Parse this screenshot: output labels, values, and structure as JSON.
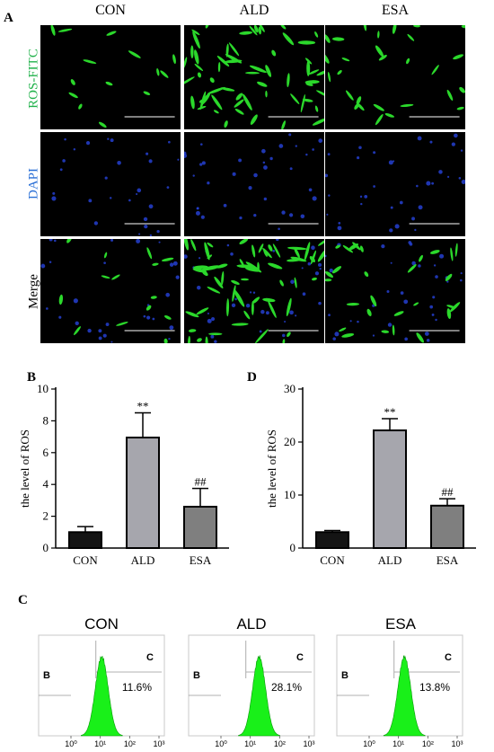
{
  "panels": {
    "a": "A",
    "b": "B",
    "c": "C",
    "d": "D"
  },
  "microscopy": {
    "columns": [
      "CON",
      "ALD",
      "ESA"
    ],
    "rows": [
      {
        "label": "ROS-FITC",
        "color": "#21b24b"
      },
      {
        "label": "DAPI",
        "color": "#2a6fd6"
      },
      {
        "label": "Merge",
        "color": "#000000"
      }
    ]
  },
  "chart_data": [
    {
      "type": "bar",
      "panel": "B",
      "categories": [
        "CON",
        "ALD",
        "ESA"
      ],
      "values": [
        1.0,
        6.95,
        2.6
      ],
      "errors": [
        0.35,
        1.55,
        1.15
      ],
      "annotations": [
        "",
        "**",
        "##"
      ],
      "bar_colors": [
        "#141414",
        "#a6a6ad",
        "#7f7f7f"
      ],
      "ylabel": "the level of ROS",
      "ylim": [
        0,
        10
      ],
      "yticks": [
        0,
        2,
        4,
        6,
        8,
        10
      ]
    },
    {
      "type": "bar",
      "panel": "D",
      "categories": [
        "CON",
        "ALD",
        "ESA"
      ],
      "values": [
        3.0,
        22.2,
        8.0
      ],
      "errors": [
        0.3,
        2.2,
        1.3
      ],
      "annotations": [
        "",
        "**",
        "##"
      ],
      "bar_colors": [
        "#141414",
        "#a6a6ad",
        "#7f7f7f"
      ],
      "ylabel": "the level of ROS",
      "ylim": [
        0,
        30
      ],
      "yticks": [
        0,
        10,
        20,
        30
      ]
    },
    {
      "type": "area",
      "panel": "C",
      "histograms": [
        {
          "title": "CON",
          "gate_left": "B",
          "gate_right": "C",
          "percent": "11.6%",
          "peak_log": 1.05
        },
        {
          "title": "ALD",
          "gate_left": "B",
          "gate_right": "C",
          "percent": "28.1%",
          "peak_log": 1.3
        },
        {
          "title": "ESA",
          "gate_left": "B",
          "gate_right": "C",
          "percent": "13.8%",
          "peak_log": 1.2
        }
      ],
      "xticks": [
        "10⁰",
        "10¹",
        "10²",
        "10³"
      ],
      "fill_color": "#19f019"
    }
  ]
}
